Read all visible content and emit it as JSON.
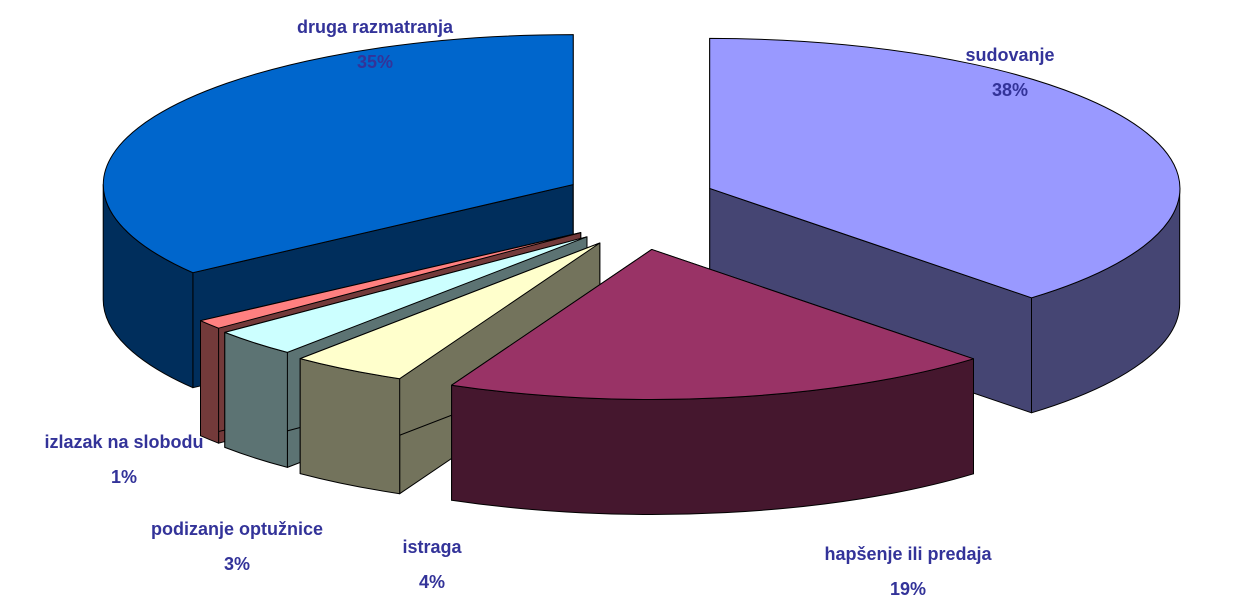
{
  "chart_data": {
    "type": "pie3d",
    "categories": [
      "sudovanje",
      "hapšenje ili predaja",
      "istraga",
      "podizanje optužnice",
      "izlazak na slobodu",
      "druga razmatranja"
    ],
    "values": [
      38,
      19,
      4,
      3,
      1,
      35
    ],
    "value_labels": [
      "38%",
      "19%",
      "4%",
      "3%",
      "1%",
      "35%"
    ],
    "colors": [
      "#9999ff",
      "#993366",
      "#ffffcc",
      "#ccffff",
      "#ff8080",
      "#0066cc"
    ]
  }
}
